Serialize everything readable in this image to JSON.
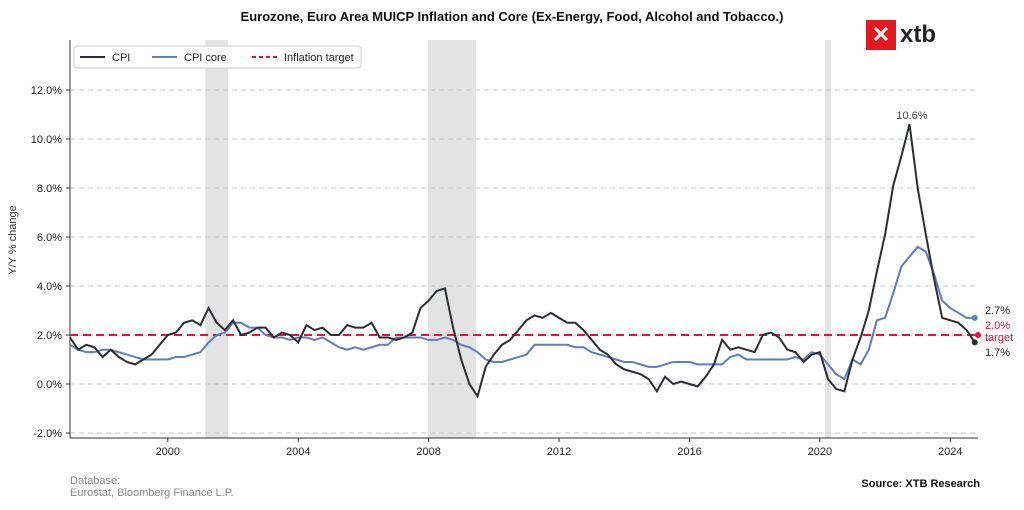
{
  "chart_data": {
    "type": "line",
    "title": "Eurozone, Euro Area MUICP Inflation and Core (Ex-Energy, Food, Alcohol and Tobacco.)",
    "ylabel": "Y/Y % change",
    "xlabel": "",
    "xlim": [
      1997.0,
      2024.85
    ],
    "ylim": [
      -2.3,
      14.0
    ],
    "xticks": [
      2000,
      2004,
      2008,
      2012,
      2016,
      2020,
      2024
    ],
    "yticks": [
      -2,
      0,
      2,
      4,
      6,
      8,
      10,
      12
    ],
    "ytick_labels": [
      "-2.0%",
      "0.0%",
      "2.0%",
      "4.0%",
      "6.0%",
      "8.0%",
      "10.0%",
      "12.0%"
    ],
    "grid": "horizontal dashed",
    "legend": "top-left",
    "recession_bands": [
      [
        2001.15,
        2001.85
      ],
      [
        2007.98,
        2009.45
      ],
      [
        2020.16,
        2020.34
      ]
    ],
    "x_start": 1997.0,
    "x_step_years": 0.25,
    "series": [
      {
        "name": "CPI",
        "color": "#2b2d35",
        "values": [
          1.9,
          1.4,
          1.6,
          1.5,
          1.1,
          1.4,
          1.1,
          0.9,
          0.8,
          1.0,
          1.2,
          1.6,
          2.0,
          2.1,
          2.5,
          2.6,
          2.4,
          3.1,
          2.5,
          2.2,
          2.6,
          2.0,
          2.1,
          2.3,
          2.3,
          1.9,
          2.1,
          2.0,
          1.7,
          2.4,
          2.2,
          2.3,
          2.0,
          2.0,
          2.4,
          2.3,
          2.3,
          2.5,
          1.9,
          1.9,
          1.8,
          1.9,
          2.1,
          3.1,
          3.4,
          3.8,
          3.9,
          2.3,
          1.0,
          0.0,
          -0.5,
          0.7,
          1.2,
          1.6,
          1.8,
          2.2,
          2.6,
          2.8,
          2.7,
          2.9,
          2.7,
          2.5,
          2.5,
          2.2,
          1.8,
          1.4,
          1.2,
          0.8,
          0.6,
          0.5,
          0.4,
          0.2,
          -0.3,
          0.3,
          0.0,
          0.1,
          0.0,
          -0.1,
          0.3,
          0.8,
          1.8,
          1.4,
          1.5,
          1.4,
          1.3,
          2.0,
          2.1,
          1.9,
          1.4,
          1.3,
          0.9,
          1.2,
          1.3,
          0.2,
          -0.2,
          -0.3,
          1.0,
          1.9,
          3.0,
          4.6,
          6.1,
          8.1,
          9.3,
          10.6,
          8.0,
          6.1,
          4.3,
          2.7,
          2.6,
          2.5,
          2.2,
          1.7
        ]
      },
      {
        "name": "CPI core",
        "color": "#5b7fbf",
        "values": [
          1.6,
          1.4,
          1.3,
          1.3,
          1.4,
          1.4,
          1.3,
          1.2,
          1.1,
          1.0,
          1.0,
          1.0,
          1.0,
          1.1,
          1.1,
          1.2,
          1.3,
          1.7,
          2.0,
          2.1,
          2.5,
          2.5,
          2.3,
          2.3,
          2.0,
          1.9,
          1.9,
          1.8,
          1.9,
          1.9,
          1.8,
          1.9,
          1.7,
          1.5,
          1.4,
          1.5,
          1.4,
          1.5,
          1.6,
          1.6,
          1.9,
          1.9,
          1.9,
          1.9,
          1.8,
          1.8,
          1.9,
          1.8,
          1.6,
          1.5,
          1.3,
          1.0,
          0.9,
          0.9,
          1.0,
          1.1,
          1.2,
          1.6,
          1.6,
          1.6,
          1.6,
          1.6,
          1.5,
          1.5,
          1.3,
          1.2,
          1.1,
          1.0,
          0.9,
          0.9,
          0.8,
          0.7,
          0.7,
          0.8,
          0.9,
          0.9,
          0.9,
          0.8,
          0.8,
          0.8,
          0.8,
          1.1,
          1.2,
          1.0,
          1.0,
          1.0,
          1.0,
          1.0,
          1.0,
          1.1,
          1.0,
          1.3,
          1.2,
          0.8,
          0.4,
          0.2,
          1.0,
          0.8,
          1.4,
          2.6,
          2.7,
          3.7,
          4.8,
          5.2,
          5.6,
          5.4,
          4.5,
          3.4,
          3.1,
          2.9,
          2.7,
          2.7
        ]
      },
      {
        "name": "Inflation target",
        "color": "#e0143c",
        "constant": 2.0
      }
    ],
    "annotations": {
      "peak": "10.6%",
      "core_last": "2.7%",
      "target_value": "2.0%",
      "target_word": "target",
      "cpi_last": "1.7%"
    }
  },
  "footer": {
    "db_label": "Database:",
    "db_source": "Eurostat, Bloomberg Finance L.P.",
    "source": "Source: XTB Research"
  },
  "logo": {
    "text": "xtb",
    "mark": "✕"
  }
}
